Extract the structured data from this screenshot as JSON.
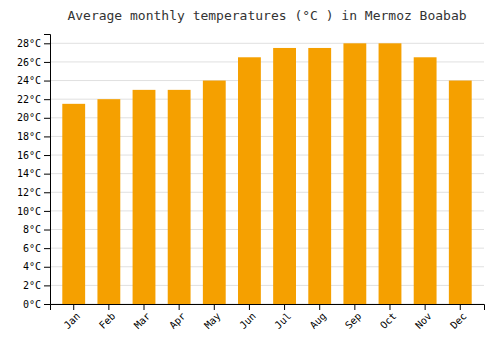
{
  "chart_data": {
    "type": "bar",
    "title": "Average monthly temperatures (°C ) in Mermoz Boabab",
    "categories": [
      "Jan",
      "Feb",
      "Mar",
      "Apr",
      "May",
      "Jun",
      "Jul",
      "Aug",
      "Sep",
      "Oct",
      "Nov",
      "Dec"
    ],
    "values": [
      21.5,
      22,
      23,
      23,
      24,
      26.5,
      27.5,
      27.5,
      28,
      28,
      26.5,
      24
    ],
    "color": "#F5A000",
    "ylim": [
      0,
      29
    ],
    "yticks": [
      {
        "value": 0,
        "label": "0°C"
      },
      {
        "value": 2,
        "label": "2°C"
      },
      {
        "value": 4,
        "label": "4°C"
      },
      {
        "value": 6,
        "label": "6°C"
      },
      {
        "value": 8,
        "label": "8°C"
      },
      {
        "value": 10,
        "label": "10°C"
      },
      {
        "value": 12,
        "label": "12°C"
      },
      {
        "value": 14,
        "label": "14°C"
      },
      {
        "value": 16,
        "label": "16°C"
      },
      {
        "value": 18,
        "label": "18°C"
      },
      {
        "value": 20,
        "label": "20°C"
      },
      {
        "value": 22,
        "label": "22°C"
      },
      {
        "value": 24,
        "label": "24°C"
      },
      {
        "value": 26,
        "label": "26°C"
      },
      {
        "value": 28,
        "label": "28°C"
      }
    ],
    "grid": true
  }
}
